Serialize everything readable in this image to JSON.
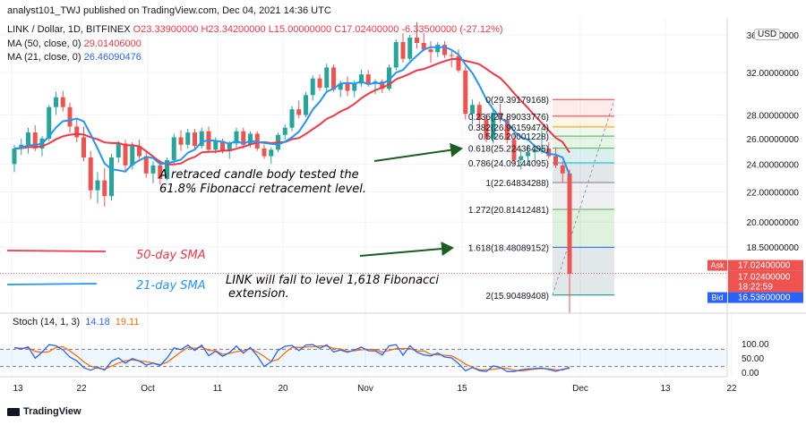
{
  "header": {
    "published": "analyst101_TWJ published on TradingView.com, Dec 04, 2021 14:36 UTC",
    "symbol": "LINK / Dollar, 1D, BITFINEX",
    "open": "O23.33900000",
    "high": "H23.34200000",
    "low": "L15.00000000",
    "close": "C17.02400000",
    "change": "-6.33500000 (-27.12%)",
    "ma50_label": "MA (50, close, 0)",
    "ma50_value": "29.01406000",
    "ma21_label": "MA (21, close, 0)",
    "ma21_value": "26.46090476"
  },
  "currency_badge": "USD",
  "stoch": {
    "label": "Stoch (14, 1, 3)",
    "k_value": "14.18",
    "d_value": "19.11"
  },
  "price_tags": {
    "ask_label": "Ask",
    "ask_value": "17.02400000",
    "last_value": "17.02400000",
    "countdown": "18:22:59",
    "bid_label": "Bid",
    "bid_value": "16.53600000"
  },
  "annotations": {
    "retrace_line1": "A retraced candle body tested the",
    "retrace_line2": "61.8% Fibonacci retracement level.",
    "fall_line1": "LINK will fall to level 1,618 Fibonacci",
    "fall_line2": "extension.",
    "legend_50": "50-day SMA",
    "legend_21": "21-day SMA"
  },
  "branding": "TradingView",
  "colors": {
    "up": "#26a69a",
    "down": "#ef5350",
    "ma50": "#f23645",
    "ma21": "#2196f3",
    "stoch_k": "#2962ff",
    "stoch_d": "#ff6d00",
    "annotation_text": "#131722",
    "legend50_text": "#f23645",
    "legend21_text": "#2196f3",
    "arrow": "#1b5e20"
  },
  "chart_data": {
    "type": "candlestick",
    "price_axis": {
      "ticks": [
        "36.00000000",
        "32.00000000",
        "28.00000000",
        "26.00000000",
        "24.00000000",
        "22.00000000",
        "20.00000000",
        "18.50000000"
      ],
      "tick_values": [
        36,
        32,
        28,
        26,
        24,
        22,
        20,
        18.5
      ],
      "scale": "log",
      "range": [
        15.4,
        37.5
      ]
    },
    "time_axis": {
      "ticks": [
        "13",
        "22",
        "Oct",
        "11",
        "20",
        "Nov",
        "15",
        "Dec",
        "13",
        "22"
      ]
    },
    "ohlc_sep_dec": [
      [
        24.0,
        25.5,
        23.4,
        25.2
      ],
      [
        25.2,
        26.0,
        24.7,
        25.5
      ],
      [
        25.5,
        26.9,
        24.8,
        26.5
      ],
      [
        26.5,
        27.1,
        25.0,
        25.2
      ],
      [
        25.2,
        26.2,
        24.6,
        26.0
      ],
      [
        26.0,
        28.9,
        25.8,
        28.7
      ],
      [
        28.7,
        30.1,
        28.0,
        29.6
      ],
      [
        29.6,
        30.2,
        28.3,
        28.7
      ],
      [
        28.7,
        29.1,
        26.5,
        27.0
      ],
      [
        27.0,
        27.7,
        25.7,
        26.1
      ],
      [
        26.1,
        27.0,
        24.2,
        24.5
      ],
      [
        24.5,
        25.0,
        21.5,
        22.1
      ],
      [
        22.1,
        23.4,
        21.2,
        22.8
      ],
      [
        22.8,
        23.7,
        21.0,
        21.7
      ],
      [
        21.7,
        24.8,
        21.4,
        24.5
      ],
      [
        24.5,
        25.8,
        24.1,
        25.6
      ],
      [
        25.6,
        25.9,
        23.4,
        23.9
      ],
      [
        23.9,
        25.7,
        23.6,
        25.4
      ],
      [
        25.4,
        25.9,
        24.4,
        24.6
      ],
      [
        24.6,
        24.9,
        23.0,
        23.3
      ],
      [
        23.3,
        24.2,
        22.6,
        23.9
      ],
      [
        23.9,
        24.3,
        22.5,
        22.9
      ],
      [
        22.9,
        24.5,
        22.8,
        24.3
      ],
      [
        24.3,
        26.4,
        24.0,
        26.1
      ],
      [
        26.1,
        26.7,
        25.0,
        25.5
      ],
      [
        25.5,
        26.8,
        25.2,
        26.5
      ],
      [
        26.5,
        26.8,
        25.1,
        25.4
      ],
      [
        25.4,
        26.9,
        25.2,
        26.6
      ],
      [
        26.6,
        27.0,
        24.9,
        25.1
      ],
      [
        25.1,
        26.1,
        24.8,
        25.8
      ],
      [
        25.8,
        26.0,
        24.8,
        25.0
      ],
      [
        25.0,
        25.8,
        24.4,
        25.6
      ],
      [
        25.6,
        26.9,
        25.3,
        26.6
      ],
      [
        26.6,
        26.9,
        25.2,
        25.5
      ],
      [
        25.5,
        26.6,
        25.3,
        26.4
      ],
      [
        26.4,
        26.6,
        25.0,
        25.2
      ],
      [
        25.2,
        25.5,
        24.4,
        24.6
      ],
      [
        24.6,
        25.3,
        24.0,
        25.1
      ],
      [
        25.1,
        26.5,
        24.9,
        26.3
      ],
      [
        26.3,
        27.2,
        25.9,
        26.9
      ],
      [
        26.9,
        28.8,
        26.6,
        28.5
      ],
      [
        28.5,
        29.3,
        27.7,
        28.0
      ],
      [
        28.0,
        30.1,
        27.8,
        29.8
      ],
      [
        29.8,
        31.7,
        29.3,
        31.4
      ],
      [
        31.4,
        31.8,
        30.2,
        30.5
      ],
      [
        30.5,
        32.9,
        30.2,
        32.5
      ],
      [
        32.5,
        32.8,
        30.1,
        30.3
      ],
      [
        30.3,
        31.2,
        29.6,
        30.9
      ],
      [
        30.9,
        31.6,
        29.7,
        30.2
      ],
      [
        30.2,
        31.2,
        29.6,
        30.9
      ],
      [
        30.9,
        32.3,
        30.6,
        31.8
      ],
      [
        31.8,
        32.2,
        30.6,
        30.9
      ],
      [
        30.9,
        31.3,
        29.9,
        31.1
      ],
      [
        31.1,
        31.3,
        30.0,
        30.4
      ],
      [
        30.4,
        32.8,
        30.2,
        32.5
      ],
      [
        32.5,
        35.5,
        32.2,
        35.2
      ],
      [
        35.2,
        36.2,
        33.0,
        33.4
      ],
      [
        33.4,
        36.0,
        33.2,
        35.7
      ],
      [
        35.7,
        37.5,
        34.5,
        35.1
      ],
      [
        35.1,
        36.2,
        34.2,
        34.4
      ],
      [
        34.4,
        35.3,
        33.0,
        34.1
      ],
      [
        34.1,
        35.2,
        33.6,
        34.9
      ],
      [
        34.9,
        35.3,
        33.5,
        33.8
      ],
      [
        33.8,
        34.2,
        32.5,
        33.7
      ],
      [
        33.7,
        34.4,
        32.0,
        32.2
      ],
      [
        32.2,
        32.6,
        27.6,
        28.1
      ],
      [
        28.1,
        29.4,
        27.2,
        28.9
      ],
      [
        28.9,
        29.2,
        27.0,
        27.6
      ],
      [
        27.6,
        28.1,
        25.7,
        26.0
      ],
      [
        26.0,
        28.6,
        25.6,
        28.2
      ],
      [
        28.2,
        29.0,
        27.3,
        27.6
      ],
      [
        27.6,
        27.9,
        25.6,
        25.9
      ],
      [
        25.9,
        26.6,
        24.0,
        24.3
      ],
      [
        24.3,
        25.2,
        23.6,
        24.6
      ],
      [
        24.6,
        25.5,
        23.9,
        24.9
      ],
      [
        24.9,
        25.3,
        24.2,
        25.1
      ],
      [
        25.1,
        26.7,
        24.8,
        25.2
      ],
      [
        25.2,
        25.7,
        24.4,
        24.6
      ],
      [
        24.6,
        25.3,
        23.7,
        23.9
      ],
      [
        23.9,
        24.2,
        22.6,
        23.3
      ],
      [
        23.3,
        23.6,
        15.0,
        17.0
      ]
    ],
    "ma50": "red smoothed series, last value 29.01406000",
    "ma21": "blue smoothed series, last value 26.46090476",
    "fibonacci": [
      {
        "level": "0",
        "price": 29.39179168,
        "label": "0(29.39179168)"
      },
      {
        "level": "0.236",
        "price": 27.89033776,
        "label": "0.236(27.89033776)"
      },
      {
        "level": "0.382",
        "price": 26.96159474,
        "label": "0.382(26.96159474)"
      },
      {
        "level": "0.5",
        "price": 26.20001228,
        "label": "0.5(26.20001228)"
      },
      {
        "level": "0.618",
        "price": 25.22436495,
        "label": "0.618(25.22436495)"
      },
      {
        "level": "0.786",
        "price": 24.09144095,
        "label": "0.786(24.09144095)"
      },
      {
        "level": "1",
        "price": 22.64834288,
        "label": "1(22.64834288)"
      },
      {
        "level": "1.272",
        "price": 20.81412481,
        "label": "1.272(20.81412481)"
      },
      {
        "level": "1.618",
        "price": 18.48089152,
        "label": "1.618(18.48089152)"
      },
      {
        "level": "2",
        "price": 15.90489408,
        "label": "2(15.90489408)"
      }
    ],
    "current_price": 17.024,
    "stochastic": {
      "axis_ticks": [
        "100.00",
        "50.00",
        "0.00"
      ],
      "tick_values": [
        100,
        50,
        0
      ],
      "bands": [
        80,
        20
      ],
      "k_last": 14.18,
      "d_last": 19.11
    }
  }
}
